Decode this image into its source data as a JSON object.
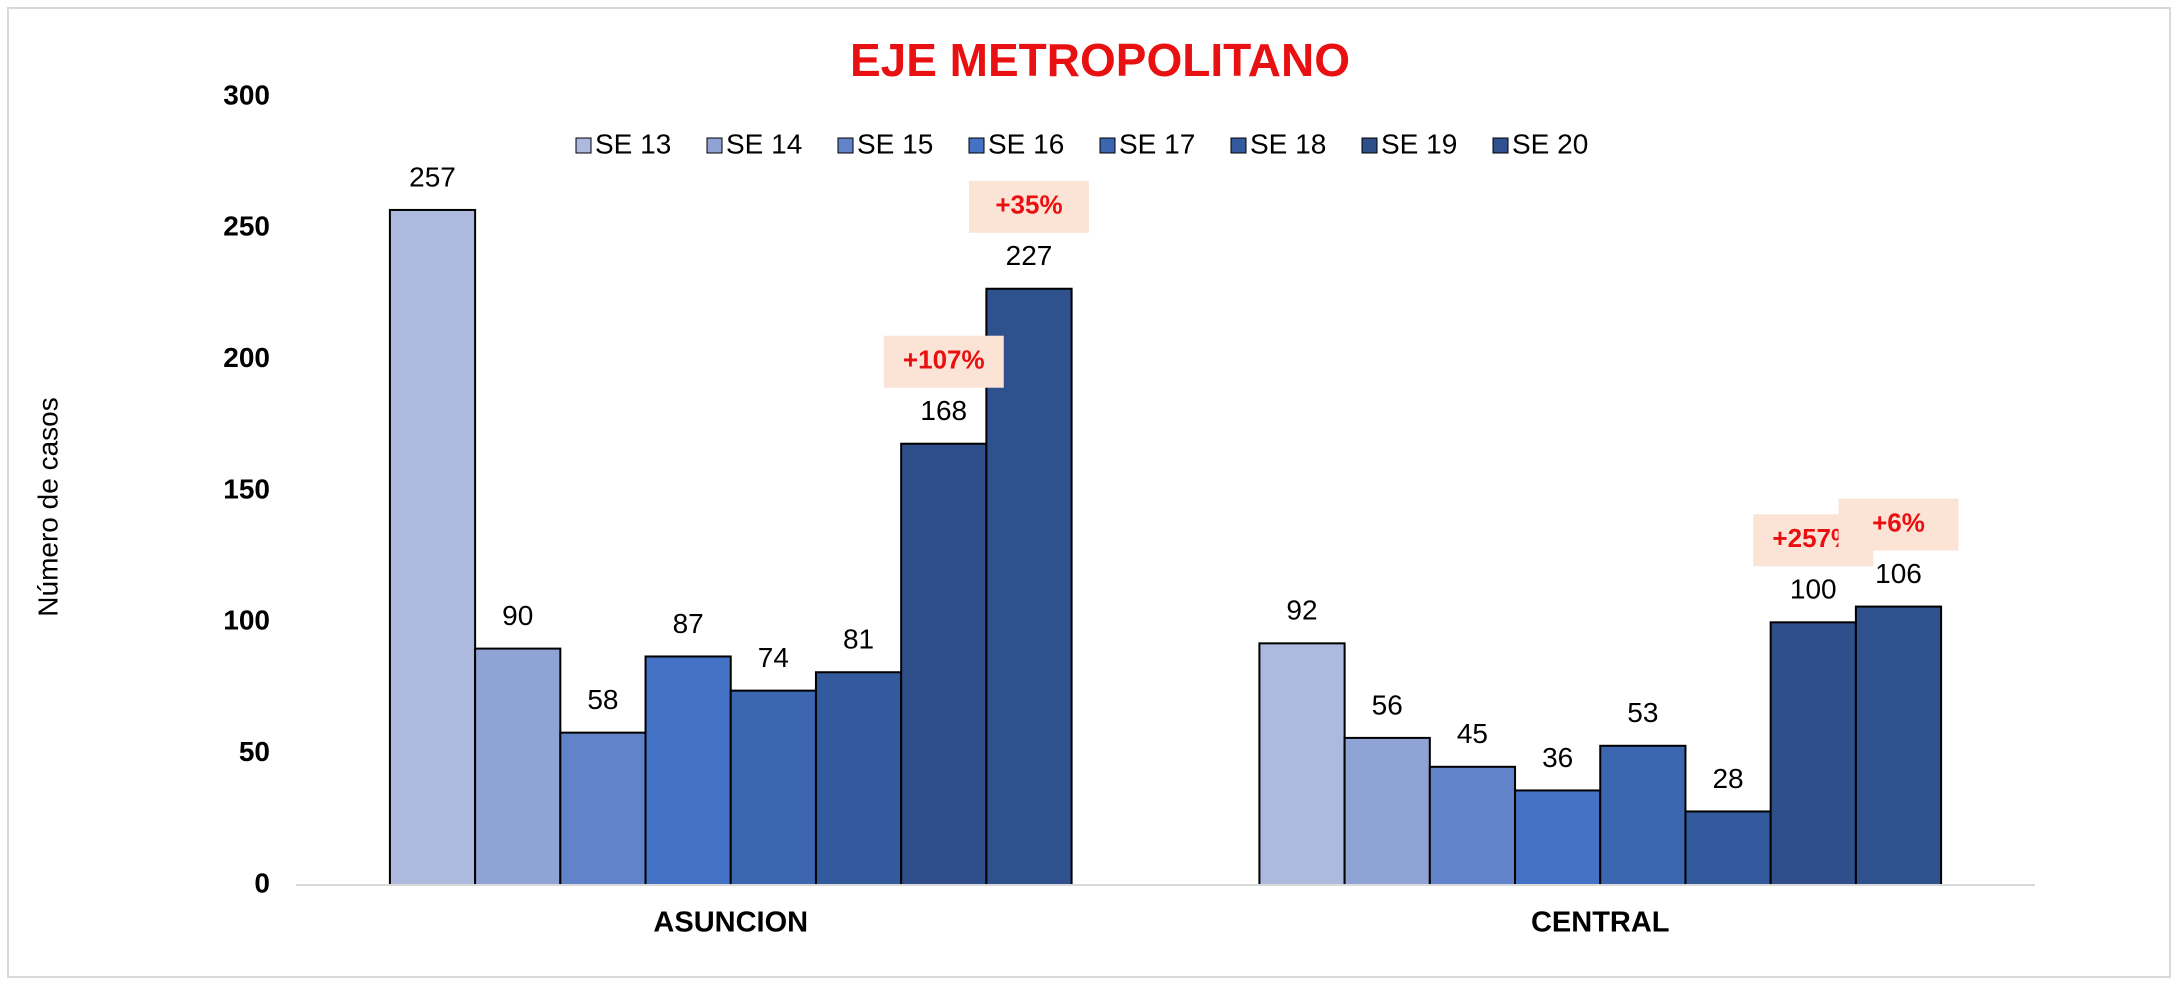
{
  "chart_data": {
    "type": "bar",
    "title": "EJE METROPOLITANO",
    "y_label": "Número de casos",
    "categories": [
      "ASUNCION",
      "CENTRAL"
    ],
    "series": [
      {
        "name": "SE 13",
        "color": "#adb9de",
        "values": [
          257,
          92
        ]
      },
      {
        "name": "SE 14",
        "color": "#8fa3d4",
        "values": [
          90,
          56
        ]
      },
      {
        "name": "SE 15",
        "color": "#6283c9",
        "values": [
          58,
          45
        ]
      },
      {
        "name": "SE 16",
        "color": "#4472c4",
        "values": [
          87,
          36
        ]
      },
      {
        "name": "SE 17",
        "color": "#3c66b0",
        "values": [
          74,
          53
        ]
      },
      {
        "name": "SE 18",
        "color": "#345a9e",
        "values": [
          81,
          28
        ]
      },
      {
        "name": "SE 19",
        "color": "#2e4f8a",
        "values": [
          168,
          100
        ]
      },
      {
        "name": "SE 20",
        "color": "#2f528f",
        "values": [
          227,
          106
        ]
      }
    ],
    "annotations": [
      {
        "text": "+107%",
        "category": "ASUNCION",
        "series": "SE 19"
      },
      {
        "text": "+35%",
        "category": "ASUNCION",
        "series": "SE 20"
      },
      {
        "text": "+257%",
        "category": "CENTRAL",
        "series": "SE 19"
      },
      {
        "text": "+6%",
        "category": "CENTRAL",
        "series": "SE 20"
      }
    ],
    "ylim": [
      0,
      300
    ],
    "yticks": [
      0,
      50,
      100,
      150,
      200,
      250,
      300
    ],
    "grid": false,
    "legend": "top"
  }
}
